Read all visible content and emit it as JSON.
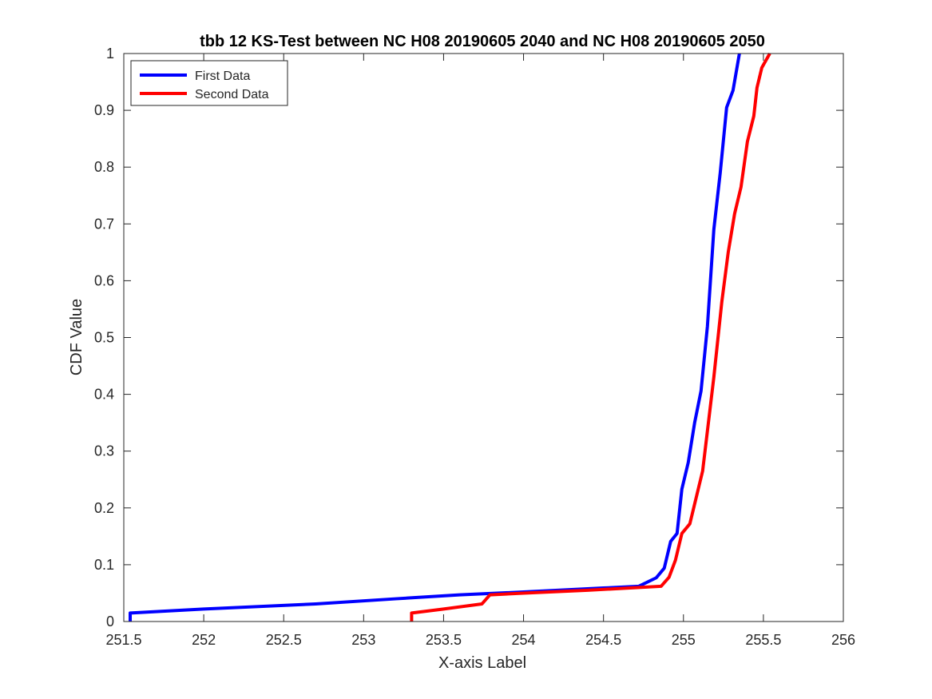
{
  "chart_data": {
    "type": "line",
    "title": "tbb 12 KS-Test between NC H08 20190605 2040 and NC H08 20190605 2050",
    "xlabel": "X-axis Label",
    "ylabel": "CDF Value",
    "xlim": [
      251.5,
      256
    ],
    "ylim": [
      0,
      1
    ],
    "xticks": [
      "251.5",
      "252",
      "252.5",
      "253",
      "253.5",
      "254",
      "254.5",
      "255",
      "255.5",
      "256"
    ],
    "yticks": [
      "0",
      "0.1",
      "0.2",
      "0.3",
      "0.4",
      "0.5",
      "0.6",
      "0.7",
      "0.8",
      "0.9",
      "1"
    ],
    "grid": false,
    "legend_position": "top-left",
    "series": [
      {
        "name": "First Data",
        "color": "#0000ff",
        "points": [
          [
            251.54,
            0.0
          ],
          [
            251.54,
            0.015
          ],
          [
            252.0,
            0.022
          ],
          [
            252.7,
            0.031
          ],
          [
            253.2,
            0.04
          ],
          [
            253.6,
            0.047
          ],
          [
            254.0,
            0.052
          ],
          [
            254.5,
            0.059
          ],
          [
            254.72,
            0.062
          ],
          [
            254.83,
            0.077
          ],
          [
            254.88,
            0.094
          ],
          [
            254.92,
            0.141
          ],
          [
            254.96,
            0.155
          ],
          [
            254.99,
            0.233
          ],
          [
            255.03,
            0.28
          ],
          [
            255.07,
            0.35
          ],
          [
            255.11,
            0.406
          ],
          [
            255.15,
            0.52
          ],
          [
            255.19,
            0.69
          ],
          [
            255.23,
            0.79
          ],
          [
            255.27,
            0.905
          ],
          [
            255.31,
            0.935
          ],
          [
            255.35,
            1.0
          ]
        ]
      },
      {
        "name": "Second Data",
        "color": "#ff0000",
        "points": [
          [
            253.3,
            0.0
          ],
          [
            253.3,
            0.015
          ],
          [
            253.5,
            0.022
          ],
          [
            253.74,
            0.031
          ],
          [
            253.79,
            0.047
          ],
          [
            254.0,
            0.05
          ],
          [
            254.4,
            0.055
          ],
          [
            254.86,
            0.062
          ],
          [
            254.91,
            0.078
          ],
          [
            254.95,
            0.108
          ],
          [
            254.99,
            0.155
          ],
          [
            255.04,
            0.172
          ],
          [
            255.12,
            0.265
          ],
          [
            255.19,
            0.43
          ],
          [
            255.24,
            0.563
          ],
          [
            255.28,
            0.65
          ],
          [
            255.32,
            0.718
          ],
          [
            255.36,
            0.765
          ],
          [
            255.4,
            0.845
          ],
          [
            255.44,
            0.89
          ],
          [
            255.46,
            0.94
          ],
          [
            255.49,
            0.975
          ],
          [
            255.54,
            1.0
          ]
        ]
      }
    ]
  }
}
